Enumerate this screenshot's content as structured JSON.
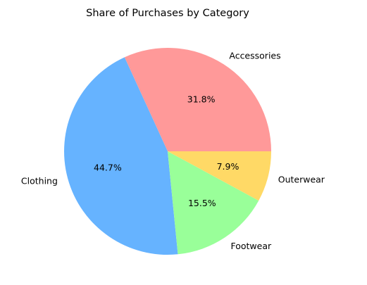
{
  "chart_data": {
    "type": "pie",
    "title": "Share of Purchases by Category",
    "start_angle_deg": 0,
    "direction": "counterclockwise",
    "legend": "none",
    "slices": [
      {
        "label": "Accessories",
        "value": 31.8,
        "pct_label": "31.8%",
        "color": "#ff9999"
      },
      {
        "label": "Clothing",
        "value": 44.7,
        "pct_label": "44.7%",
        "color": "#66b3ff"
      },
      {
        "label": "Footwear",
        "value": 15.5,
        "pct_label": "15.5%",
        "color": "#99ff99"
      },
      {
        "label": "Outerwear",
        "value": 7.9,
        "pct_label": "7.9%",
        "color": "#ffd966"
      }
    ]
  }
}
